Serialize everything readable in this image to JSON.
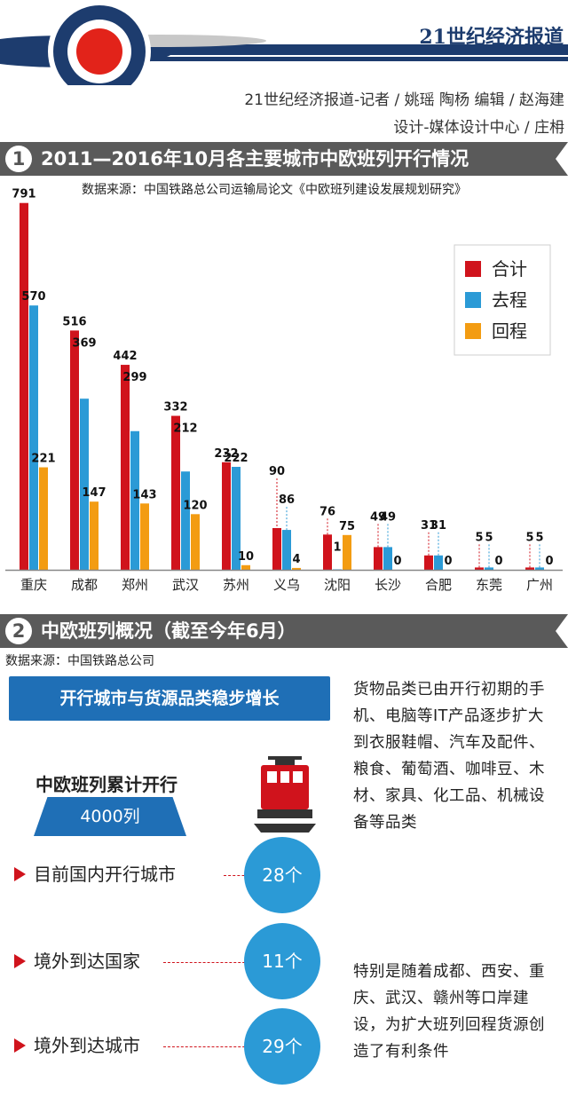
{
  "header": {
    "brand": "21世纪经济报道",
    "byline_line1": "21世纪经济报道-记者 / 姚瑶  陶杨   编辑 / 赵海建",
    "byline_line2": "设计-媒体设计中心 / 庄枏"
  },
  "section1": {
    "number": "1",
    "title": "2011—2016年10月各主要城市中欧班列开行情况",
    "source": "数据来源：中国铁路总公司运输局论文《中欧班列建设发展规划研究》"
  },
  "chart_data": {
    "type": "bar",
    "title": "2011—2016年10月各主要城市中欧班列开行情况",
    "categories": [
      "重庆",
      "成都",
      "郑州",
      "武汉",
      "苏州",
      "义乌",
      "沈阳",
      "长沙",
      "合肥",
      "东莞",
      "广州"
    ],
    "series": [
      {
        "name": "合计",
        "color": "#d0131c",
        "values": [
          791,
          516,
          442,
          332,
          232,
          90,
          76,
          49,
          31,
          5,
          5
        ]
      },
      {
        "name": "去程",
        "color": "#2b9ad6",
        "values": [
          570,
          369,
          299,
          212,
          222,
          86,
          1,
          49,
          31,
          5,
          5
        ]
      },
      {
        "name": "回程",
        "color": "#f39c12",
        "values": [
          221,
          147,
          143,
          120,
          10,
          4,
          75,
          0,
          0,
          0,
          0
        ]
      }
    ],
    "legend": [
      "合计",
      "去程",
      "回程"
    ],
    "legend_position": "top-right",
    "ylim": [
      0,
      800
    ],
    "grid": false
  },
  "section2": {
    "number": "2",
    "title": "中欧班列概况（截至今年6月）",
    "source": "数据来源：中国铁路总公司"
  },
  "overview": {
    "banner": "开行城市与货源品类稳步增长",
    "cumulative_label": "中欧班列累计开行",
    "cumulative_value": "4000列",
    "stats": [
      {
        "label": "目前国内开行城市",
        "value": "28个"
      },
      {
        "label": "境外到达国家",
        "value": "11个"
      },
      {
        "label": "境外到达城市",
        "value": "29个"
      }
    ],
    "paragraph1": "货物品类已由开行初期的手机、电脑等IT产品逐步扩大到衣服鞋帽、汽车及配件、粮食、葡萄酒、咖啡豆、木材、家具、化工品、机械设备等品类",
    "paragraph2": "特别是随着成都、西安、重庆、武汉、赣州等口岸建设，为扩大班列回程货源创造了有利条件"
  },
  "colors": {
    "navy": "#1d3c6e",
    "red": "#d0131c",
    "blue": "#2b9ad6",
    "orange": "#f39c12",
    "section_bar": "#5a5a5a"
  }
}
